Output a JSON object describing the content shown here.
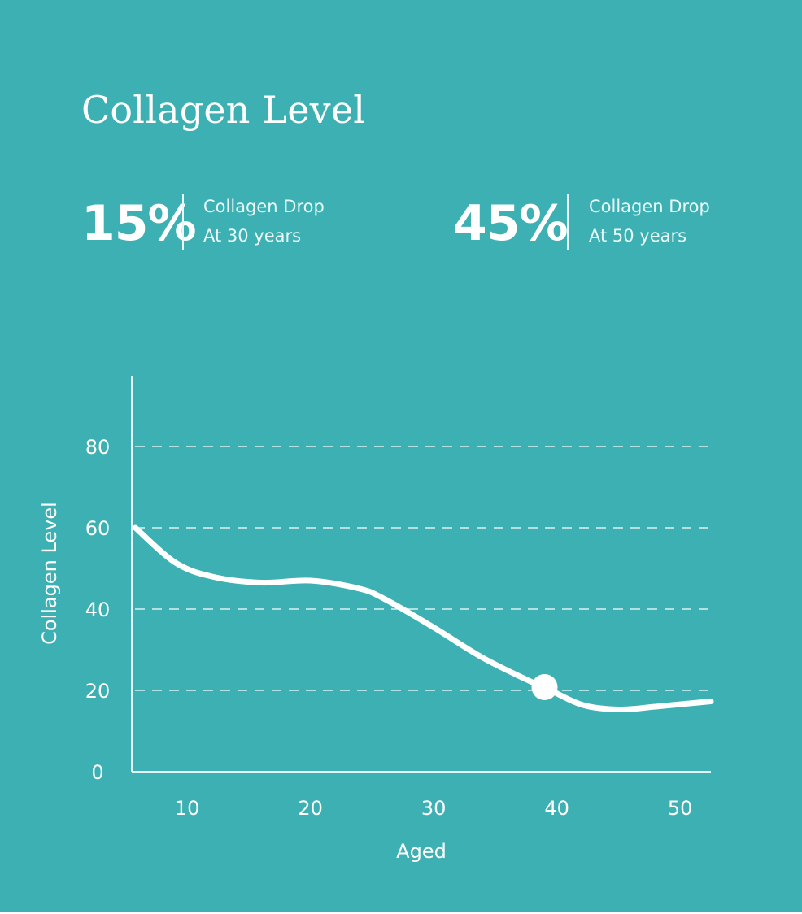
{
  "title": "Collagen Level",
  "stats": [
    {
      "value": "15%",
      "line1": "Collagen Drop",
      "line2": "At 30 years"
    },
    {
      "value": "45%",
      "line1": "Collagen Drop",
      "line2": "At 50 years"
    }
  ],
  "colors": {
    "background": "#3db0b3",
    "foreground": "#ffffff"
  },
  "chart_data": {
    "type": "line",
    "xlabel": "Aged",
    "ylabel": "Collagen Level",
    "xlim": [
      5.5,
      52.5
    ],
    "ylim": [
      0,
      100
    ],
    "x_ticks": [
      10,
      20,
      30,
      40,
      50
    ],
    "y_ticks": [
      0,
      20,
      40,
      60,
      80
    ],
    "gridlines": "dashed-horizontal",
    "series": [
      {
        "x": [
          5.8,
          9,
          12,
          16,
          20,
          24,
          26,
          30,
          34,
          38,
          39,
          42,
          45,
          48,
          52.5
        ],
        "y": [
          60,
          51.5,
          48,
          46.5,
          47,
          45,
          42.5,
          35.5,
          28,
          22,
          20.8,
          16.5,
          15.3,
          16,
          17.3
        ]
      }
    ],
    "highlight_point": {
      "x": 39,
      "y": 20.8
    }
  }
}
